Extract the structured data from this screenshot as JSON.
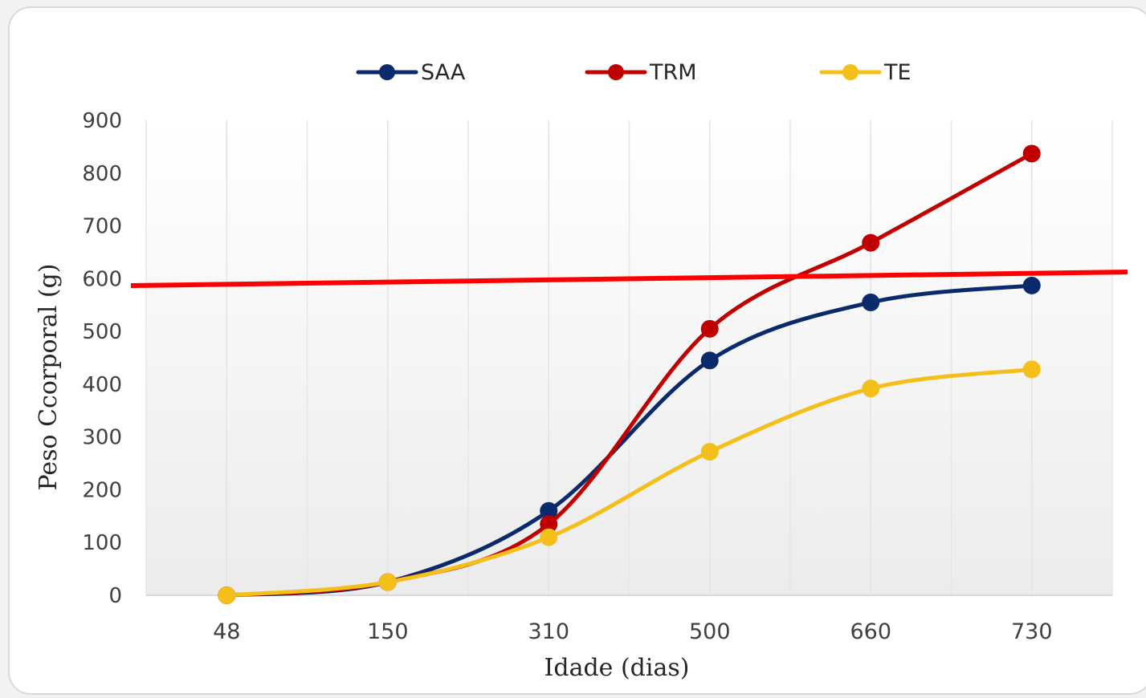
{
  "chart_data": {
    "type": "line",
    "title": "",
    "xlabel": "Idade (dias)",
    "ylabel": "Peso Ccorporal (g)",
    "categories": [
      "48",
      "150",
      "310",
      "500",
      "660",
      "730"
    ],
    "ylim": [
      0,
      900
    ],
    "yticks": [
      0,
      100,
      200,
      300,
      400,
      500,
      600,
      700,
      800,
      900
    ],
    "grid": "vertical",
    "legend_position": "top",
    "series": [
      {
        "name": "SAA",
        "color": "#0b2a6b",
        "values": [
          0,
          25,
          160,
          445,
          555,
          587
        ]
      },
      {
        "name": "TRM",
        "color": "#c00000",
        "values": [
          0,
          25,
          135,
          505,
          668,
          837
        ]
      },
      {
        "name": "TE",
        "color": "#f5bf1a",
        "values": [
          0,
          25,
          110,
          272,
          392,
          428
        ]
      }
    ],
    "annotations": [
      {
        "type": "line",
        "color": "#ff0000",
        "description": "red straight line drawn across the plot near y = 600"
      }
    ]
  }
}
